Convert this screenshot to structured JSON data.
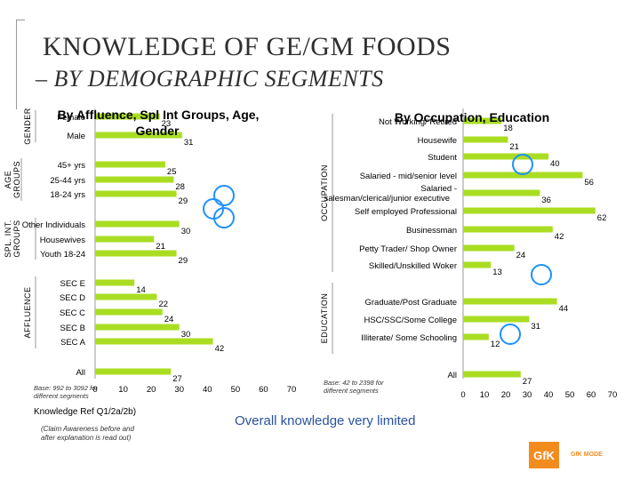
{
  "title": "KNOWLEDGE OF GE/GM FOODS",
  "subtitle": "– BY DEMOGRAPHIC SEGMENTS",
  "knowledge_ref": "Knowledge Ref Q1/2a/2b)",
  "awareness_note": "(Claim Awareness before and after explanation is read out)",
  "conclusion": "Overall knowledge very limited",
  "logo": {
    "mark": "GfK",
    "text": "GfK MODE"
  },
  "colors": {
    "bar": "#aadd22",
    "circle": "#1e90ff"
  },
  "chart_data": [
    {
      "type": "bar",
      "title": "By Affluence, Spl Int Groups, Age, Gender",
      "base_note": "Base: 992 to 3092 for different segments",
      "xlim": [
        0,
        70
      ],
      "x_ticks": [
        0,
        10,
        20,
        30,
        40,
        50,
        60,
        70
      ],
      "groups": [
        "GENDER",
        "AGE GROUPS",
        "SPL. INT. GROUPS",
        "AFFLUENCE"
      ],
      "bars": [
        {
          "label": "Female",
          "value": 23,
          "group": "GENDER"
        },
        {
          "label": "Male",
          "value": 31,
          "group": "GENDER"
        },
        {
          "label": "45+ yrs",
          "value": 25,
          "group": "AGE GROUPS"
        },
        {
          "label": "25-44 yrs",
          "value": 28,
          "group": "AGE GROUPS"
        },
        {
          "label": "18-24 yrs",
          "value": 29,
          "group": "AGE GROUPS"
        },
        {
          "label": "Other Individuals",
          "value": 30,
          "group": "SPL. INT. GROUPS"
        },
        {
          "label": "Housewives",
          "value": 21,
          "group": "SPL. INT. GROUPS"
        },
        {
          "label": "Youth 18-24",
          "value": 29,
          "group": "SPL. INT. GROUPS"
        },
        {
          "label": "SEC E",
          "value": 14,
          "group": "AFFLUENCE"
        },
        {
          "label": "SEC D",
          "value": 22,
          "group": "AFFLUENCE"
        },
        {
          "label": "SEC C",
          "value": 24,
          "group": "AFFLUENCE"
        },
        {
          "label": "SEC B",
          "value": 30,
          "group": "AFFLUENCE"
        },
        {
          "label": "SEC A",
          "value": 42,
          "group": "AFFLUENCE"
        },
        {
          "label": "All",
          "value": 27,
          "group": ""
        }
      ]
    },
    {
      "type": "bar",
      "title": "By Occupation, Education",
      "base_note": "Base: 42 to 2398 for different segments",
      "xlim": [
        0,
        70
      ],
      "x_ticks": [
        0,
        10,
        20,
        30,
        40,
        50,
        60,
        70
      ],
      "groups": [
        "OCCUPATION",
        "EDUCATION"
      ],
      "bars": [
        {
          "label": "Not Working/ Retired",
          "value": 18,
          "group": "OCCUPATION"
        },
        {
          "label": "Housewife",
          "value": 21,
          "group": "OCCUPATION"
        },
        {
          "label": "Student",
          "value": 40,
          "group": "OCCUPATION"
        },
        {
          "label": "Salaried - mid/senior level",
          "value": 56,
          "group": "OCCUPATION"
        },
        {
          "label": "Salaried - salesman/clerical/junior executive",
          "value": 36,
          "group": "OCCUPATION"
        },
        {
          "label": "Self employed Professional",
          "value": 62,
          "group": "OCCUPATION"
        },
        {
          "label": "Businessman",
          "value": 42,
          "group": "OCCUPATION"
        },
        {
          "label": "Petty Trader/ Shop Owner",
          "value": 24,
          "group": "OCCUPATION"
        },
        {
          "label": "Skilled/Unskilled Woker",
          "value": 13,
          "group": "OCCUPATION"
        },
        {
          "label": "Graduate/Post Graduate",
          "value": 44,
          "group": "EDUCATION"
        },
        {
          "label": "HSC/SSC/Some College",
          "value": 31,
          "group": "EDUCATION"
        },
        {
          "label": "Illiterate/ Some Schooling",
          "value": 12,
          "group": "EDUCATION"
        },
        {
          "label": "All",
          "value": 27,
          "group": ""
        }
      ]
    }
  ]
}
